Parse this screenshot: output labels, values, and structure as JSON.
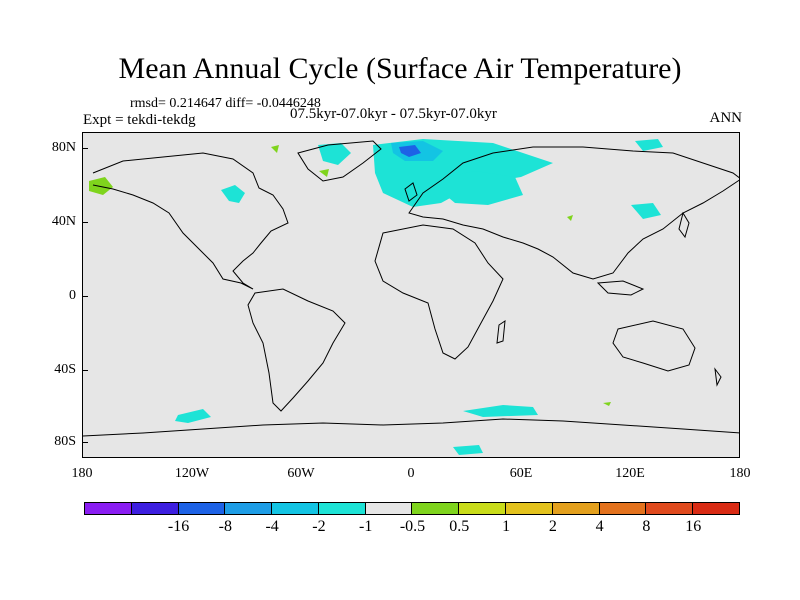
{
  "title": "Mean Annual Cycle (Surface Air Temperature)",
  "stats": "rmsd= 0.214647 diff= -0.0446248",
  "expt": "Expt = tekdi-tekdg",
  "case": "07.5kyr-07.0kyr - 07.5kyr-07.0kyr",
  "season": "ANN",
  "map": {
    "lat_ticks": [
      "80N",
      "40N",
      "0",
      "40S",
      "80S"
    ],
    "lon_ticks": [
      "180",
      "120W",
      "60W",
      "0",
      "60E",
      "120E",
      "180"
    ],
    "colorbar": {
      "colors": [
        "#8a1df2",
        "#3d1fe0",
        "#1d62e6",
        "#1d9de6",
        "#13c4e3",
        "#1de3d6",
        "#e6e6e6",
        "#7fd41d",
        "#c9dc1a",
        "#e3c21d",
        "#e3a01d",
        "#e3721d",
        "#e04a1d",
        "#d92b14"
      ],
      "labels": [
        "-16",
        "-8",
        "-4",
        "-2",
        "-1",
        "-0.5",
        "0.5",
        "1",
        "2",
        "4",
        "8",
        "16"
      ]
    }
  }
}
